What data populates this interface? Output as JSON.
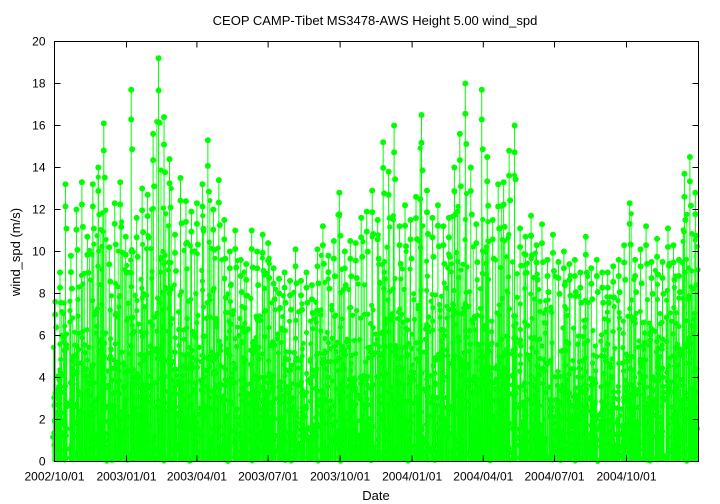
{
  "chart_data": {
    "type": "scatter",
    "title": "CEOP CAMP-Tibet MS3478-AWS Height 5.00 wind_spd",
    "xlabel": "Date",
    "ylabel": "wind_spd (m/s)",
    "ylim": [
      0,
      20
    ],
    "xlim": [
      "2002-10-01",
      "2005-01-01"
    ],
    "y_ticks": [
      0,
      2,
      4,
      6,
      8,
      10,
      12,
      14,
      16,
      18,
      20
    ],
    "x_ticks": [
      {
        "date": "2002-10-01",
        "label": "2002/10/01"
      },
      {
        "date": "2003-01-01",
        "label": "2003/01/01"
      },
      {
        "date": "2003-04-01",
        "label": "2003/04/01"
      },
      {
        "date": "2003-07-01",
        "label": "2003/07/01"
      },
      {
        "date": "2003-10-01",
        "label": "2003/10/01"
      },
      {
        "date": "2004-01-01",
        "label": "2004/01/01"
      },
      {
        "date": "2004-04-01",
        "label": "2004/04/01"
      },
      {
        "date": "2004-07-01",
        "label": "2004/07/01"
      },
      {
        "date": "2004-10-01",
        "label": "2004/10/01"
      }
    ],
    "grid": false,
    "legend": "none",
    "series_color": "#00ff00",
    "series": [
      {
        "x": [
          "2002-10-02",
          "2002-10-08",
          "2002-10-15",
          "2002-10-22",
          "2002-10-29",
          "2002-11-05",
          "2002-11-12",
          "2002-11-19",
          "2002-11-26",
          "2002-12-03",
          "2002-12-10",
          "2002-12-17",
          "2002-12-24",
          "2002-12-31",
          "2003-01-07",
          "2003-01-14",
          "2003-01-21",
          "2003-01-28",
          "2003-02-04",
          "2003-02-11",
          "2003-02-18",
          "2003-02-25",
          "2003-03-04",
          "2003-03-11",
          "2003-03-18",
          "2003-03-25",
          "2003-04-01",
          "2003-04-08",
          "2003-04-15",
          "2003-04-22",
          "2003-04-29",
          "2003-05-06",
          "2003-05-13",
          "2003-05-20",
          "2003-05-27",
          "2003-06-03",
          "2003-06-10",
          "2003-06-17",
          "2003-06-24",
          "2003-07-01",
          "2003-07-08",
          "2003-07-15",
          "2003-07-22",
          "2003-07-29",
          "2003-08-05",
          "2003-08-12",
          "2003-08-19",
          "2003-08-26",
          "2003-09-02",
          "2003-09-09",
          "2003-09-16",
          "2003-09-23",
          "2003-09-30",
          "2003-10-07",
          "2003-10-14",
          "2003-10-21",
          "2003-10-28",
          "2003-11-04",
          "2003-11-11",
          "2003-11-18",
          "2003-11-25",
          "2003-12-02",
          "2003-12-09",
          "2003-12-16",
          "2003-12-23",
          "2003-12-30",
          "2004-01-06",
          "2004-01-13",
          "2004-01-20",
          "2004-01-27",
          "2004-02-03",
          "2004-02-10",
          "2004-02-17",
          "2004-02-24",
          "2004-03-02",
          "2004-03-09",
          "2004-03-16",
          "2004-03-23",
          "2004-03-30",
          "2004-04-06",
          "2004-04-13",
          "2004-04-20",
          "2004-04-27",
          "2004-05-04",
          "2004-05-11",
          "2004-05-18",
          "2004-05-25",
          "2004-06-01",
          "2004-06-08",
          "2004-06-15",
          "2004-06-22",
          "2004-06-29",
          "2004-07-06",
          "2004-07-13",
          "2004-07-20",
          "2004-07-27",
          "2004-08-03",
          "2004-08-10",
          "2004-08-17",
          "2004-08-24",
          "2004-08-31",
          "2004-09-07",
          "2004-09-14",
          "2004-09-21",
          "2004-09-28",
          "2004-10-05",
          "2004-10-12",
          "2004-10-19",
          "2004-10-26",
          "2004-11-02",
          "2004-11-09",
          "2004-11-16",
          "2004-11-23",
          "2004-11-30",
          "2004-12-07",
          "2004-12-14",
          "2004-12-21",
          "2004-12-28"
        ],
        "y": [
          7.6,
          9.0,
          13.2,
          9.8,
          12.0,
          13.3,
          10.7,
          13.2,
          14.0,
          16.1,
          10.2,
          12.3,
          13.3,
          10.7,
          17.7,
          11.6,
          13.0,
          12.7,
          15.6,
          19.2,
          16.4,
          14.4,
          10.8,
          13.5,
          12.4,
          11.9,
          12.3,
          13.2,
          15.3,
          12.0,
          13.4,
          11.5,
          10.0,
          11.0,
          9.6,
          9.4,
          11.0,
          10.0,
          10.8,
          10.4,
          9.2,
          8.7,
          9.0,
          8.6,
          10.1,
          8.6,
          9.0,
          8.4,
          10.1,
          11.2,
          9.8,
          10.5,
          12.8,
          10.0,
          10.5,
          10.4,
          11.6,
          11.9,
          12.9,
          11.5,
          15.2,
          13.8,
          16.0,
          11.2,
          12.2,
          11.5,
          12.6,
          16.5,
          12.9,
          11.6,
          12.2,
          11.2,
          11.6,
          14.0,
          15.6,
          18.0,
          14.0,
          11.3,
          17.7,
          14.5,
          11.5,
          13.2,
          13.3,
          14.8,
          16.0,
          11.1,
          10.7,
          11.7,
          10.3,
          11.3,
          9.6,
          10.8,
          9.5,
          10.0,
          9.4,
          9.6,
          9.0,
          10.7,
          9.2,
          9.6,
          9.0,
          9.0,
          9.3,
          9.6,
          10.3,
          12.3,
          9.6,
          10.1,
          11.2,
          9.5,
          10.6,
          9.5,
          11.1,
          10.3,
          9.6,
          13.7,
          14.5,
          12.8
        ]
      }
    ]
  }
}
